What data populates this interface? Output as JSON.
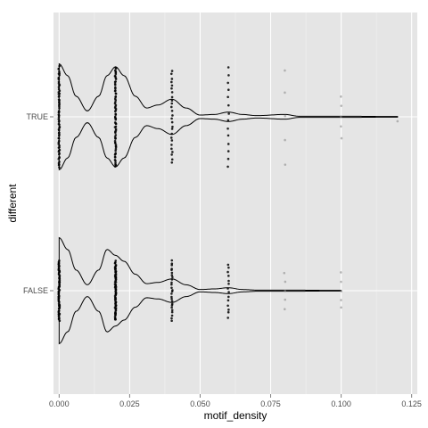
{
  "chart_data": {
    "type": "violin",
    "orientation": "horizontal",
    "xlabel": "motif_density",
    "ylabel": "different",
    "xlim": [
      -0.002,
      0.127
    ],
    "xticks": [
      0.0,
      0.025,
      0.05,
      0.075,
      0.1,
      0.125
    ],
    "xtick_labels": [
      "0.000",
      "0.025",
      "0.050",
      "0.075",
      "0.100",
      "0.125"
    ],
    "categories": [
      "TRUE",
      "FALSE"
    ],
    "grid": true,
    "colors": {
      "panel": "#e5e5e5",
      "gridline": "#ffffff",
      "violin_stroke": "#000000",
      "points": "#000000",
      "text": "#4d4d4d"
    },
    "series": [
      {
        "category": "TRUE",
        "density_profile": [
          [
            0.0,
            0.9
          ],
          [
            0.003,
            0.7
          ],
          [
            0.006,
            0.35
          ],
          [
            0.01,
            0.1
          ],
          [
            0.014,
            0.35
          ],
          [
            0.017,
            0.7
          ],
          [
            0.02,
            0.85
          ],
          [
            0.023,
            0.7
          ],
          [
            0.027,
            0.35
          ],
          [
            0.031,
            0.15
          ],
          [
            0.035,
            0.2
          ],
          [
            0.04,
            0.3
          ],
          [
            0.045,
            0.15
          ],
          [
            0.05,
            0.03
          ],
          [
            0.055,
            0.04
          ],
          [
            0.06,
            0.08
          ],
          [
            0.065,
            0.04
          ],
          [
            0.07,
            0.02
          ],
          [
            0.08,
            0.04
          ],
          [
            0.085,
            0.01
          ],
          [
            0.1,
            0.01
          ],
          [
            0.12,
            0.005
          ]
        ],
        "point_columns": [
          {
            "x": 0.0,
            "spread": 0.85,
            "density": "heavy"
          },
          {
            "x": 0.02,
            "spread": 0.85,
            "density": "heavy"
          },
          {
            "x": 0.04,
            "spread": 0.78,
            "density": "medium"
          },
          {
            "x": 0.06,
            "spread": 0.85,
            "density": "light"
          },
          {
            "x": 0.08,
            "spread": 0.8,
            "density": "sparse"
          },
          {
            "x": 0.1,
            "spread": 0.35,
            "density": "sparse"
          },
          {
            "x": 0.12,
            "spread": 0.25,
            "density": "single"
          }
        ]
      },
      {
        "category": "FALSE",
        "density_profile": [
          [
            0.0,
            0.9
          ],
          [
            0.003,
            0.7
          ],
          [
            0.006,
            0.35
          ],
          [
            0.01,
            0.1
          ],
          [
            0.014,
            0.35
          ],
          [
            0.017,
            0.7
          ],
          [
            0.02,
            0.6
          ],
          [
            0.023,
            0.5
          ],
          [
            0.027,
            0.28
          ],
          [
            0.031,
            0.12
          ],
          [
            0.035,
            0.14
          ],
          [
            0.04,
            0.2
          ],
          [
            0.045,
            0.1
          ],
          [
            0.05,
            0.02
          ],
          [
            0.055,
            0.03
          ],
          [
            0.06,
            0.05
          ],
          [
            0.065,
            0.02
          ],
          [
            0.07,
            0.01
          ],
          [
            0.08,
            0.01
          ],
          [
            0.1,
            0.005
          ]
        ],
        "point_columns": [
          {
            "x": 0.0,
            "spread": 0.5,
            "density": "heavy"
          },
          {
            "x": 0.02,
            "spread": 0.5,
            "density": "heavy"
          },
          {
            "x": 0.04,
            "spread": 0.5,
            "density": "medium"
          },
          {
            "x": 0.06,
            "spread": 0.45,
            "density": "light"
          },
          {
            "x": 0.08,
            "spread": 0.3,
            "density": "sparse"
          },
          {
            "x": 0.1,
            "spread": 0.3,
            "density": "sparse"
          }
        ]
      }
    ]
  }
}
